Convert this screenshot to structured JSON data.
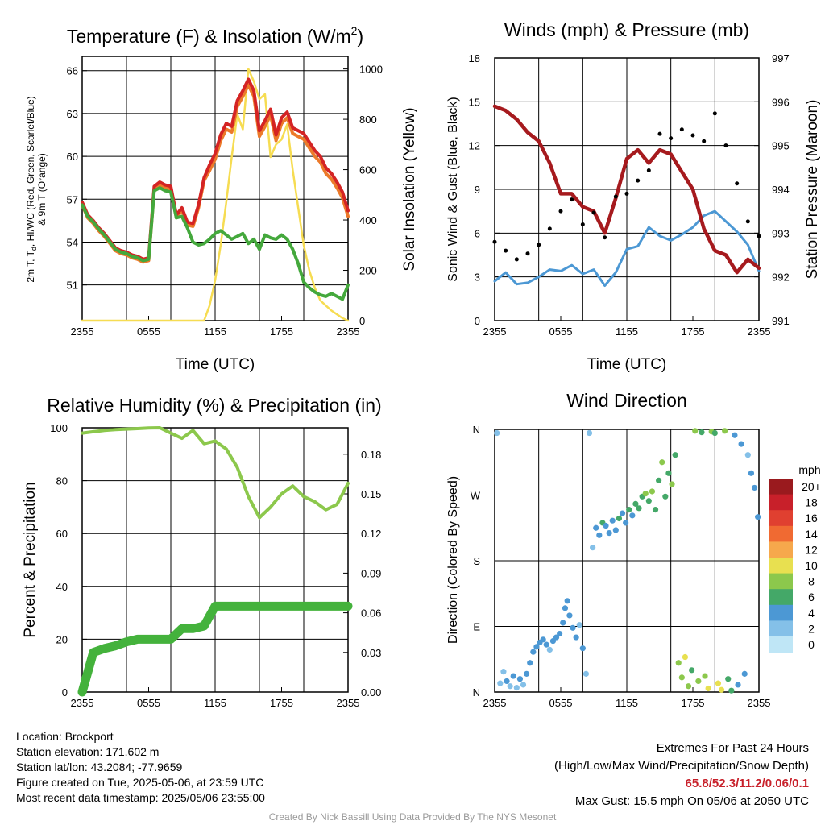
{
  "location": "Location: Brockport",
  "elevation": "Station elevation: 171.602 m",
  "latlon": "Station lat/lon: 43.2084; -77.9659",
  "created": "Figure created on Tue, 2025-05-06, at 23:59 UTC",
  "recent": "Most recent data timestamp: 2025/05/06 23:55:00",
  "extremes_title": "Extremes For Past 24 Hours",
  "extremes_sub": "(High/Low/Max Wind/Precipitation/Snow Depth)",
  "extremes_values": "65.8/52.3/11.2/0.06/0.1",
  "max_gust": "Max Gust: 15.5 mph On 05/06 at 2050 UTC",
  "credit": "Created By Nick Bassill Using Data Provided By The NYS Mesonet",
  "colors": {
    "temp": "#d42424",
    "wc": "#ec7a2a",
    "dew": "#44a83c",
    "solar": "#f6dc52",
    "wind": "#4c98d4",
    "gust": "#000000",
    "pressure": "#a61a1e",
    "rh": "#8cc84c",
    "precip": "#44b23c"
  },
  "chart_data": [
    {
      "type": "line",
      "title": "Temperature (F) & Insolation (W/m",
      "title_sup": "2",
      "title_end": ")",
      "xlabel": "Time (UTC)",
      "ylabel_left_1": "2m T, T",
      "ylabel_left_1_sub": "d",
      "ylabel_left_1_end": ", HI/WC (Red, Green, Scarlet/Blue)",
      "ylabel_left_2": "& 9m T (Orange)",
      "ylabel_right": "Solar Insolation (Yellow)",
      "xticks": [
        "2355",
        "0555",
        "1155",
        "1755",
        "2355"
      ],
      "ylim_left": [
        48.5,
        67
      ],
      "yticks_left": [
        51,
        54,
        57,
        60,
        63,
        66
      ],
      "ylim_right": [
        0,
        1050
      ],
      "yticks_right": [
        0,
        200,
        400,
        600,
        800,
        1000
      ],
      "x_hours": [
        0,
        0.5,
        1,
        1.5,
        2,
        2.5,
        3,
        3.5,
        4,
        4.5,
        5,
        5.5,
        6,
        6.5,
        7,
        7.5,
        8,
        8.5,
        9,
        9.5,
        10,
        10.5,
        11,
        11.5,
        12,
        12.5,
        13,
        13.5,
        14,
        14.5,
        15,
        15.5,
        16,
        16.5,
        17,
        17.5,
        18,
        18.5,
        19,
        19.5,
        20,
        20.5,
        21,
        21.5,
        22,
        22.5,
        23,
        23.5,
        24
      ],
      "series": [
        {
          "name": "2m T",
          "color_key": "temp",
          "values": [
            56.8,
            55.9,
            55.5,
            55.0,
            54.6,
            54.1,
            53.6,
            53.4,
            53.3,
            53.1,
            53.0,
            52.8,
            52.9,
            57.9,
            58.2,
            58.0,
            57.9,
            55.9,
            56.4,
            55.4,
            55.3,
            56.6,
            58.5,
            59.4,
            60.2,
            61.5,
            62.3,
            62.1,
            63.9,
            64.6,
            65.4,
            64.6,
            61.8,
            62.5,
            63.3,
            61.5,
            62.7,
            63.1,
            62.0,
            61.8,
            61.6,
            61.0,
            60.4,
            60.0,
            59.2,
            58.8,
            58.2,
            57.5,
            56.2
          ]
        },
        {
          "name": "9m T",
          "color_key": "wc",
          "values": [
            56.6,
            55.7,
            55.3,
            54.8,
            54.4,
            53.9,
            53.4,
            53.2,
            53.1,
            52.9,
            52.8,
            52.6,
            52.7,
            57.7,
            58.0,
            57.8,
            57.7,
            55.7,
            56.2,
            55.2,
            55.1,
            56.4,
            58.3,
            59.0,
            59.8,
            61.1,
            61.9,
            61.7,
            63.5,
            64.2,
            65.0,
            64.2,
            61.4,
            62.1,
            62.9,
            61.1,
            62.3,
            62.7,
            61.6,
            61.4,
            61.2,
            60.6,
            60.0,
            59.6,
            58.8,
            58.4,
            57.8,
            57.1,
            55.8
          ]
        },
        {
          "name": "2m Td",
          "color_key": "dew",
          "values": [
            56.6,
            55.8,
            55.4,
            54.9,
            54.5,
            54.0,
            53.5,
            53.3,
            53.2,
            53.0,
            52.9,
            52.7,
            52.8,
            57.6,
            57.8,
            57.6,
            57.5,
            55.7,
            55.8,
            55.0,
            54.0,
            53.8,
            53.9,
            54.2,
            54.6,
            54.8,
            54.5,
            54.2,
            54.4,
            54.6,
            53.9,
            54.2,
            53.5,
            54.5,
            54.3,
            54.2,
            54.5,
            54.2,
            53.5,
            52.5,
            51.2,
            50.8,
            50.5,
            50.3,
            50.2,
            50.4,
            50.2,
            50.0,
            51.0
          ]
        },
        {
          "name": "Solar Insolation",
          "axis": "right",
          "color_key": "solar",
          "values": [
            0,
            0,
            0,
            0,
            0,
            0,
            0,
            0,
            0,
            0,
            0,
            0,
            0,
            0,
            0,
            0,
            0,
            0,
            0,
            0,
            0,
            0,
            0,
            60,
            160,
            300,
            470,
            650,
            820,
            760,
            1000,
            950,
            880,
            900,
            650,
            700,
            720,
            780,
            600,
            450,
            300,
            200,
            130,
            80,
            60,
            40,
            25,
            10,
            0
          ]
        }
      ]
    },
    {
      "type": "line",
      "title": "Winds (mph) & Pressure (mb)",
      "xlabel": "Time (UTC)",
      "ylabel_left": "Sonic Wind & Gust (Blue, Black)",
      "ylabel_right": "Station Pressure (Maroon)",
      "xticks": [
        "2355",
        "0555",
        "1155",
        "1755",
        "2355"
      ],
      "ylim_left": [
        0,
        18
      ],
      "yticks_left": [
        0,
        3,
        6,
        9,
        12,
        15,
        18
      ],
      "ylim_right": [
        991,
        997
      ],
      "yticks_right": [
        991,
        992,
        993,
        994,
        995,
        996,
        997
      ],
      "x_hours": [
        0,
        1,
        2,
        3,
        4,
        5,
        6,
        7,
        8,
        9,
        10,
        11,
        12,
        13,
        14,
        15,
        16,
        17,
        18,
        19,
        20,
        21,
        22,
        23,
        24
      ],
      "series": [
        {
          "name": "Sonic Wind",
          "color_key": "wind",
          "values": [
            2.7,
            3.3,
            2.5,
            2.6,
            3.0,
            3.5,
            3.4,
            3.8,
            3.2,
            3.5,
            2.4,
            3.3,
            4.9,
            5.1,
            6.4,
            5.8,
            5.5,
            5.9,
            6.4,
            7.2,
            7.5,
            6.8,
            6.1,
            5.2,
            3.4
          ]
        },
        {
          "name": "Gust",
          "color_key": "gust",
          "style": "points",
          "values": [
            5.4,
            4.8,
            4.2,
            4.6,
            5.2,
            6.3,
            7.5,
            8.3,
            6.6,
            7.4,
            5.7,
            8.5,
            8.7,
            9.6,
            10.3,
            12.8,
            12.5,
            13.1,
            12.7,
            12.3,
            14.2,
            12.0,
            9.4,
            6.8,
            5.8
          ]
        },
        {
          "name": "Station Pressure",
          "axis": "right",
          "color_key": "pressure",
          "values": [
            995.9,
            995.8,
            995.6,
            995.3,
            995.1,
            994.6,
            993.9,
            993.9,
            993.6,
            993.5,
            993.0,
            993.8,
            994.7,
            994.9,
            994.6,
            994.9,
            994.8,
            994.4,
            994.0,
            993.1,
            992.6,
            992.5,
            992.1,
            992.4,
            992.2
          ]
        }
      ]
    },
    {
      "type": "line",
      "title": "Relative Humidity (%) & Precipitation (in)",
      "ylabel_left": "Percent & Precipitation",
      "xticks": [
        "2355",
        "0555",
        "1155",
        "1755",
        "2355"
      ],
      "ylim_left": [
        0,
        100
      ],
      "yticks_left": [
        0,
        20,
        40,
        60,
        80,
        100
      ],
      "ylim_right": [
        0,
        0.2
      ],
      "yticks_right": [
        "0.00",
        "0.03",
        "0.06",
        "0.09",
        "0.12",
        "0.15",
        "0.18"
      ],
      "x_hours": [
        0,
        1,
        2,
        3,
        4,
        5,
        6,
        7,
        8,
        9,
        10,
        11,
        12,
        13,
        14,
        15,
        16,
        17,
        18,
        19,
        20,
        21,
        22,
        23,
        24
      ],
      "series": [
        {
          "name": "Relative Humidity",
          "color_key": "rh",
          "values": [
            98,
            98.5,
            99,
            99.3,
            99.5,
            99.7,
            99.9,
            100,
            98,
            96,
            99,
            94,
            95,
            92,
            85,
            74,
            66,
            70,
            75,
            78,
            74,
            72,
            69,
            71,
            79
          ]
        },
        {
          "name": "Precipitation",
          "axis": "right",
          "color_key": "precip",
          "values": [
            0,
            0.03,
            0.033,
            0.035,
            0.038,
            0.04,
            0.04,
            0.04,
            0.04,
            0.048,
            0.048,
            0.05,
            0.065,
            0.065,
            0.065,
            0.065,
            0.065,
            0.065,
            0.065,
            0.065,
            0.065,
            0.065,
            0.065,
            0.065,
            0.065
          ]
        }
      ]
    },
    {
      "type": "scatter",
      "title": "Wind Direction",
      "ylabel_left": "Direction (Colored By Speed)",
      "xticks": [
        "2355",
        "0555",
        "1155",
        "1755",
        "2355"
      ],
      "ylim_left": [
        0,
        360
      ],
      "yticks_left": [
        "N",
        "E",
        "S",
        "W",
        "N"
      ],
      "colorbar_title": "mph",
      "colorbar_labels": [
        "20+",
        "18",
        "16",
        "14",
        "12",
        "10",
        "8",
        "6",
        "4",
        "2",
        "0"
      ],
      "colorbar_colors": [
        "#9a1a1e",
        "#c8202a",
        "#e04030",
        "#f06a32",
        "#f6a84c",
        "#e8e050",
        "#8cc84c",
        "#44a868",
        "#4c98d4",
        "#84c0e8",
        "#bfe6f6"
      ],
      "points": [
        {
          "t": 0.2,
          "dir": 355,
          "spd": 2
        },
        {
          "t": 0.5,
          "dir": 12,
          "spd": 2
        },
        {
          "t": 0.8,
          "dir": 28,
          "spd": 2
        },
        {
          "t": 1.1,
          "dir": 15,
          "spd": 3
        },
        {
          "t": 1.4,
          "dir": 8,
          "spd": 2
        },
        {
          "t": 1.7,
          "dir": 22,
          "spd": 3
        },
        {
          "t": 2.0,
          "dir": 6,
          "spd": 2
        },
        {
          "t": 2.3,
          "dir": 18,
          "spd": 3
        },
        {
          "t": 2.6,
          "dir": 10,
          "spd": 2
        },
        {
          "t": 2.9,
          "dir": 25,
          "spd": 3
        },
        {
          "t": 3.2,
          "dir": 40,
          "spd": 3
        },
        {
          "t": 3.5,
          "dir": 55,
          "spd": 4
        },
        {
          "t": 3.8,
          "dir": 62,
          "spd": 4
        },
        {
          "t": 4.1,
          "dir": 68,
          "spd": 4
        },
        {
          "t": 4.4,
          "dir": 72,
          "spd": 4
        },
        {
          "t": 4.7,
          "dir": 65,
          "spd": 3
        },
        {
          "t": 5.0,
          "dir": 58,
          "spd": 2
        },
        {
          "t": 5.3,
          "dir": 70,
          "spd": 4
        },
        {
          "t": 5.6,
          "dir": 75,
          "spd": 4
        },
        {
          "t": 5.9,
          "dir": 80,
          "spd": 3
        },
        {
          "t": 6.2,
          "dir": 95,
          "spd": 4
        },
        {
          "t": 6.4,
          "dir": 115,
          "spd": 4
        },
        {
          "t": 6.6,
          "dir": 125,
          "spd": 3
        },
        {
          "t": 6.8,
          "dir": 105,
          "spd": 4
        },
        {
          "t": 7.1,
          "dir": 88,
          "spd": 4
        },
        {
          "t": 7.4,
          "dir": 75,
          "spd": 3
        },
        {
          "t": 7.7,
          "dir": 92,
          "spd": 2
        },
        {
          "t": 8.0,
          "dir": 60,
          "spd": 3
        },
        {
          "t": 8.3,
          "dir": 25,
          "spd": 2
        },
        {
          "t": 8.6,
          "dir": 355,
          "spd": 1
        },
        {
          "t": 8.9,
          "dir": 198,
          "spd": 2
        },
        {
          "t": 9.2,
          "dir": 225,
          "spd": 3
        },
        {
          "t": 9.5,
          "dir": 215,
          "spd": 4
        },
        {
          "t": 9.8,
          "dir": 232,
          "spd": 5
        },
        {
          "t": 10.1,
          "dir": 228,
          "spd": 4
        },
        {
          "t": 10.4,
          "dir": 218,
          "spd": 4
        },
        {
          "t": 10.7,
          "dir": 235,
          "spd": 4
        },
        {
          "t": 11.0,
          "dir": 222,
          "spd": 4
        },
        {
          "t": 11.3,
          "dir": 238,
          "spd": 5
        },
        {
          "t": 11.6,
          "dir": 245,
          "spd": 4
        },
        {
          "t": 11.9,
          "dir": 232,
          "spd": 4
        },
        {
          "t": 12.2,
          "dir": 250,
          "spd": 5
        },
        {
          "t": 12.5,
          "dir": 242,
          "spd": 4
        },
        {
          "t": 12.8,
          "dir": 258,
          "spd": 6
        },
        {
          "t": 13.1,
          "dir": 252,
          "spd": 5
        },
        {
          "t": 13.4,
          "dir": 268,
          "spd": 6
        },
        {
          "t": 13.7,
          "dir": 272,
          "spd": 7
        },
        {
          "t": 14.0,
          "dir": 262,
          "spd": 6
        },
        {
          "t": 14.3,
          "dir": 275,
          "spd": 8
        },
        {
          "t": 14.6,
          "dir": 250,
          "spd": 5
        },
        {
          "t": 14.9,
          "dir": 290,
          "spd": 6
        },
        {
          "t": 15.2,
          "dir": 315,
          "spd": 7
        },
        {
          "t": 15.5,
          "dir": 268,
          "spd": 6
        },
        {
          "t": 15.8,
          "dir": 300,
          "spd": 6
        },
        {
          "t": 16.1,
          "dir": 285,
          "spd": 8
        },
        {
          "t": 16.4,
          "dir": 325,
          "spd": 6
        },
        {
          "t": 16.7,
          "dir": 40,
          "spd": 8
        },
        {
          "t": 17.0,
          "dir": 20,
          "spd": 7
        },
        {
          "t": 17.3,
          "dir": 48,
          "spd": 10
        },
        {
          "t": 17.6,
          "dir": 8,
          "spd": 8
        },
        {
          "t": 17.9,
          "dir": 30,
          "spd": 6
        },
        {
          "t": 18.2,
          "dir": 358,
          "spd": 8
        },
        {
          "t": 18.5,
          "dir": 15,
          "spd": 7
        },
        {
          "t": 18.8,
          "dir": 356,
          "spd": 6
        },
        {
          "t": 19.1,
          "dir": 22,
          "spd": 8
        },
        {
          "t": 19.4,
          "dir": 5,
          "spd": 10
        },
        {
          "t": 19.7,
          "dir": 357,
          "spd": 8
        },
        {
          "t": 20.0,
          "dir": 355,
          "spd": 6
        },
        {
          "t": 20.3,
          "dir": 12,
          "spd": 9
        },
        {
          "t": 20.6,
          "dir": 3,
          "spd": 10
        },
        {
          "t": 20.9,
          "dir": 358,
          "spd": 7
        },
        {
          "t": 21.2,
          "dir": 18,
          "spd": 6
        },
        {
          "t": 21.5,
          "dir": 2,
          "spd": 5
        },
        {
          "t": 21.8,
          "dir": 352,
          "spd": 4
        },
        {
          "t": 22.1,
          "dir": 10,
          "spd": 3
        },
        {
          "t": 22.4,
          "dir": 340,
          "spd": 3
        },
        {
          "t": 22.7,
          "dir": 25,
          "spd": 4
        },
        {
          "t": 23.0,
          "dir": 325,
          "spd": 2
        },
        {
          "t": 23.3,
          "dir": 300,
          "spd": 3
        },
        {
          "t": 23.6,
          "dir": 280,
          "spd": 4
        },
        {
          "t": 23.9,
          "dir": 240,
          "spd": 4
        }
      ]
    }
  ]
}
